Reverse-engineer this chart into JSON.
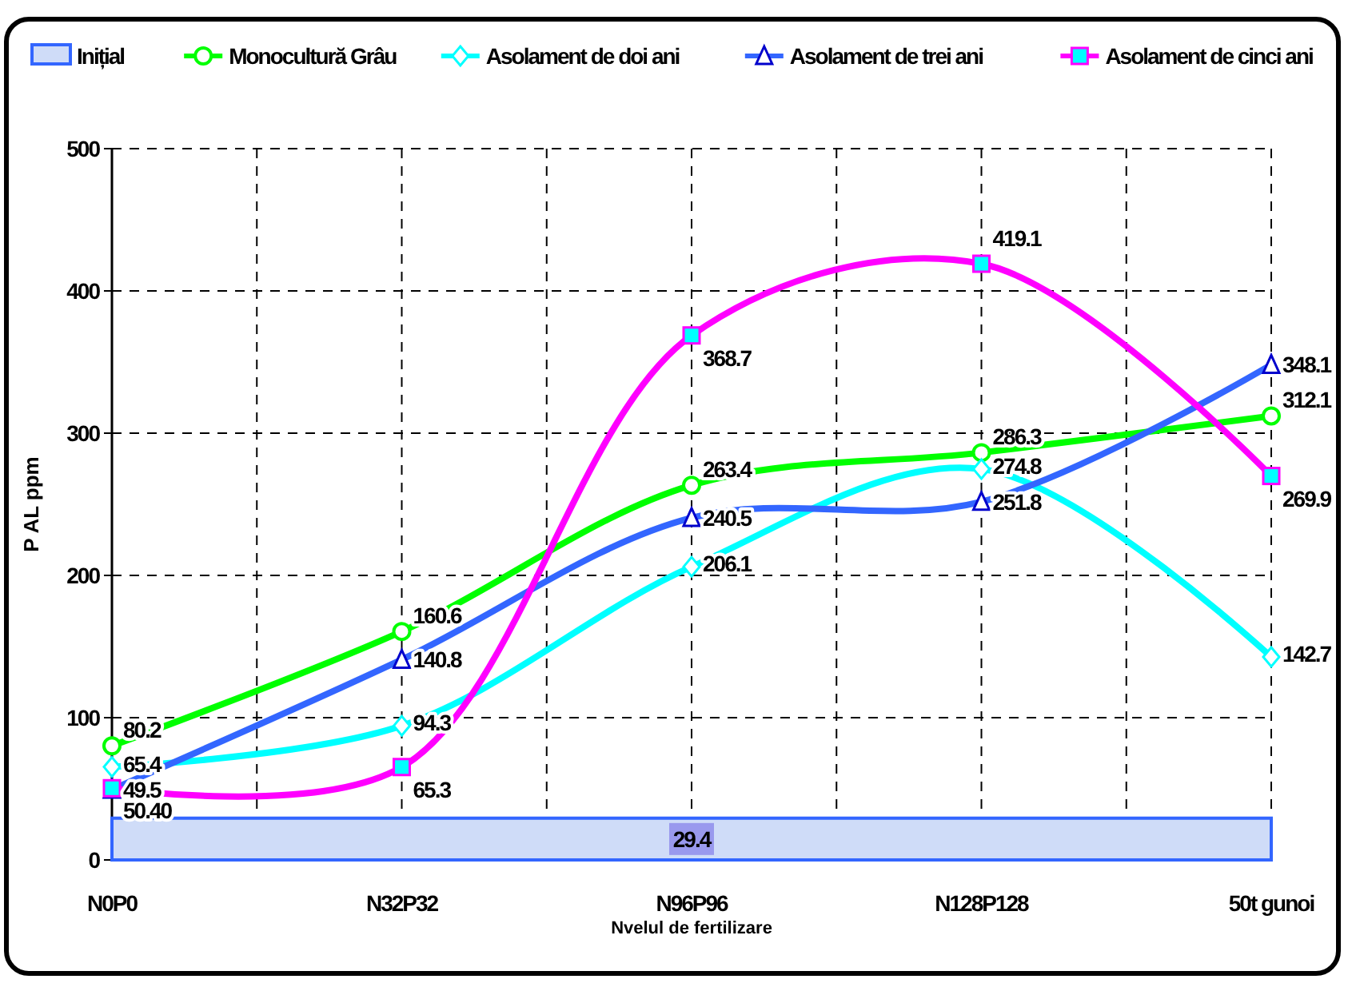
{
  "chart_data": {
    "type": "line",
    "xlabel": "Nvelul de fertilizare",
    "ylabel": "P AL ppm",
    "categories": [
      "N0P0",
      "N32P32",
      "N96P96",
      "N128P128",
      "50t gunoi"
    ],
    "ylim": [
      0,
      500
    ],
    "yticks": [
      0,
      100,
      200,
      300,
      400,
      500
    ],
    "grid": true,
    "legend": "top",
    "series": [
      {
        "name": "Inițial",
        "type": "area",
        "color": "#3366ff",
        "values": [
          29.4,
          29.4,
          29.4,
          29.4,
          29.4
        ],
        "value_labels": [
          null,
          null,
          "29.4",
          null,
          null
        ],
        "marker": "none"
      },
      {
        "name": "Monocultură Grâu",
        "color": "#00ff00",
        "values": [
          80.2,
          160.6,
          263.4,
          286.3,
          312.1
        ],
        "value_labels": [
          "80.2",
          "160.6",
          "263.4",
          "286.3",
          "312.1"
        ],
        "marker": "circle"
      },
      {
        "name": "Asolament de doi ani",
        "color": "#00ffff",
        "values": [
          65.4,
          94.3,
          206.1,
          274.8,
          142.7
        ],
        "value_labels": [
          "65.4",
          "94.3",
          "206.1",
          "274.8",
          "142.7"
        ],
        "marker": "diamond"
      },
      {
        "name": "Asolament de trei ani",
        "color": "#3366ff",
        "values": [
          49.5,
          140.8,
          240.5,
          251.8,
          348.1
        ],
        "value_labels": [
          "49.5",
          "140.8",
          "240.5",
          "251.8",
          "348.1"
        ],
        "marker": "triangle"
      },
      {
        "name": "Asolament de cinci ani",
        "color": "#ff00ff",
        "values": [
          50.4,
          65.3,
          368.7,
          419.1,
          269.9
        ],
        "value_labels": [
          "50.40",
          "65.3",
          "368.7",
          "419.1",
          "269.9"
        ],
        "marker": "square"
      }
    ]
  }
}
